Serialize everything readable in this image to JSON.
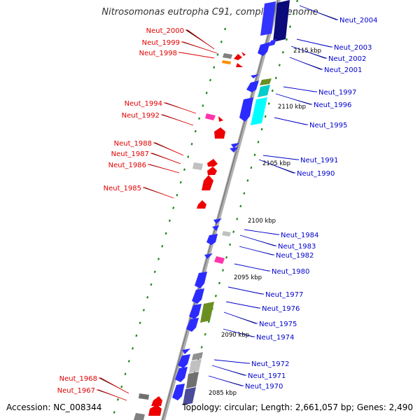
{
  "title": "Nitrosomonas eutropha C91, complete genome",
  "accession": "Accession: NC_008344",
  "summary": "Topology: circular; Length: 2,661,057 bp; Genes: 2,490",
  "colors": {
    "left_label": "#e00000",
    "right_label": "#0000cc",
    "backbone": "#999999",
    "tick": "#1a8a1a"
  },
  "kbp_markers": [
    "2115 kbp",
    "2110 kbp",
    "2105 kbp",
    "2100 kbp",
    "2095 kbp",
    "2090 kbp",
    "2085 kbp"
  ],
  "left_genes": [
    "Neut_2000",
    "Neut_1999",
    "Neut_1998",
    "Neut_1994",
    "Neut_1992",
    "Neut_1988",
    "Neut_1987",
    "Neut_1986",
    "Neut_1985",
    "Neut_1968",
    "Neut_1967"
  ],
  "right_genes": [
    "Neut_2004",
    "Neut_2003",
    "Neut_2002",
    "Neut_2001",
    "Neut_1997",
    "Neut_1996",
    "Neut_1995",
    "Neut_1991",
    "Neut_1990",
    "Neut_1984",
    "Neut_1983",
    "Neut_1982",
    "Neut_1980",
    "Neut_1977",
    "Neut_1976",
    "Neut_1975",
    "Neut_1974",
    "Neut_1972",
    "Neut_1971",
    "Neut_1970"
  ]
}
